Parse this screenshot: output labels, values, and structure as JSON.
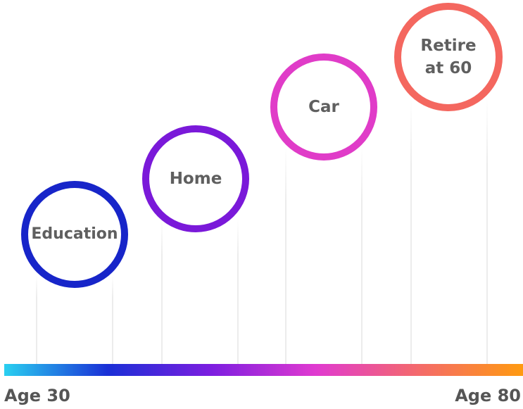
{
  "goals": [
    {
      "label": "Education",
      "color": "#1725c9"
    },
    {
      "label": "Home",
      "color": "#7a19d9"
    },
    {
      "label": "Car",
      "color": "#e03cc8"
    },
    {
      "label": "Retire\nat 60",
      "color": "#f4675f"
    }
  ],
  "timeline": {
    "start_label": "Age 30",
    "end_label": "Age 80",
    "gradient_colors": [
      "#2ad0f0",
      "#1a2fd6",
      "#7d1ee0",
      "#e03ad0",
      "#f46a6a",
      "#ff9a10"
    ]
  }
}
